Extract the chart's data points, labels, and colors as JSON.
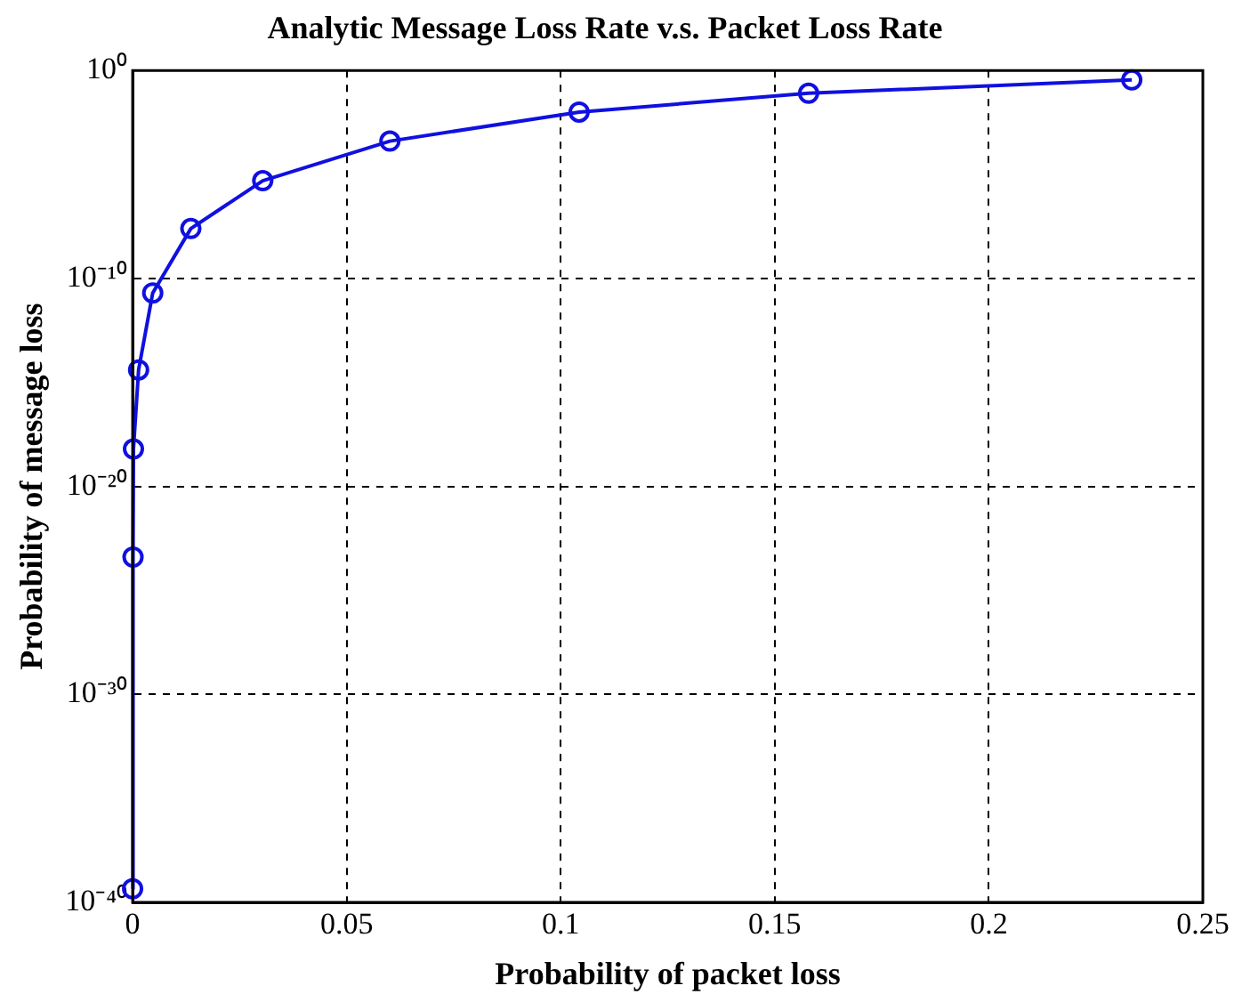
{
  "chart_data": {
    "type": "line",
    "title": "Analytic Message Loss Rate v.s. Packet Loss Rate",
    "xlabel": "Probability of packet loss",
    "ylabel": "Probability of message loss",
    "x": [
      0,
      0.0001,
      0.0002,
      0.0014,
      0.0047,
      0.0136,
      0.0304,
      0.0601,
      0.1043,
      0.1579,
      0.2334
    ],
    "series": [
      {
        "color": "#1010e0",
        "values": [
          4.5e-40,
          4e-24,
          6.3e-19,
          4e-15,
          2e-11,
          2.5e-08,
          5e-06,
          0.0004,
          0.01,
          0.08,
          0.35
        ]
      }
    ],
    "log": "y",
    "xlim": [
      0,
      0.25
    ],
    "xticks": [
      0,
      0.05,
      0.1,
      0.15,
      0.2,
      0.25
    ],
    "ylim": [
      1e-40,
      1
    ],
    "yticks": [
      {
        "value": 1e-40,
        "label": "10⁻⁴⁰"
      },
      {
        "value": 1e-30,
        "label": "10⁻³⁰"
      },
      {
        "value": 1e-20,
        "label": "10⁻²⁰"
      },
      {
        "value": 1e-10,
        "label": "10⁻¹⁰"
      },
      {
        "value": 1,
        "label": "10⁰"
      }
    ],
    "grid": true,
    "legend": false,
    "marker": "circle",
    "line_style": "solid"
  }
}
